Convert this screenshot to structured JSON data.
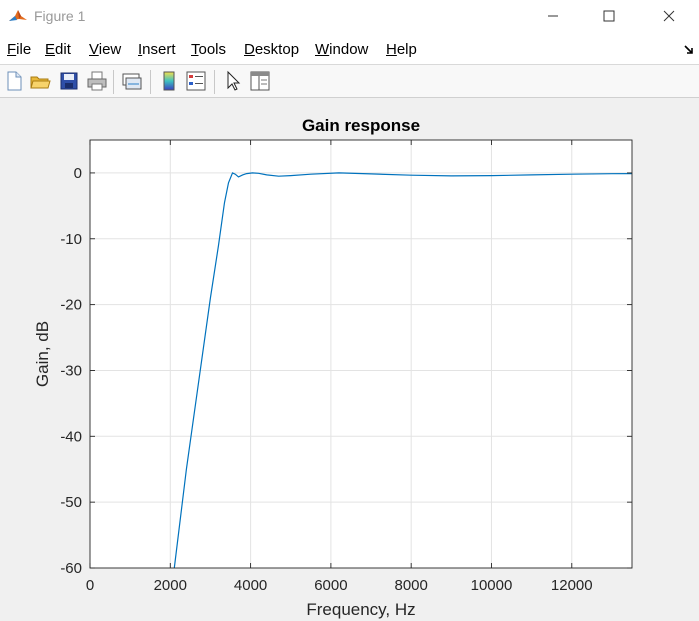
{
  "window": {
    "title": "Figure 1",
    "icon": "matlab-logo-icon",
    "controls": [
      "minimize-icon",
      "maximize-icon",
      "close-icon"
    ]
  },
  "menu": {
    "items": [
      {
        "mnemonic": "F",
        "rest": "ile"
      },
      {
        "mnemonic": "E",
        "rest": "dit"
      },
      {
        "mnemonic": "V",
        "rest": "iew"
      },
      {
        "mnemonic": "I",
        "rest": "nsert"
      },
      {
        "mnemonic": "T",
        "rest": "ools"
      },
      {
        "mnemonic": "D",
        "rest": "esktop"
      },
      {
        "mnemonic": "W",
        "rest": "indow"
      },
      {
        "mnemonic": "H",
        "rest": "elp"
      }
    ],
    "dock_icon": "dock-arrow-icon"
  },
  "toolbar": {
    "icons": [
      "new-figure-icon",
      "open-file-icon",
      "save-icon",
      "print-icon",
      "link-plot-icon",
      "colorbar-icon",
      "legend-icon",
      "edit-plot-icon",
      "property-inspector-icon"
    ]
  },
  "colors": {
    "line": "#0072bd",
    "grid": "#e3e3e3",
    "axes_bg": "#ffffff",
    "figure_bg": "#f0f0f0"
  },
  "chart_data": {
    "type": "line",
    "title": "Gain response",
    "xlabel": "Frequency, Hz",
    "ylabel": "Gain, dB",
    "xlim": [
      0,
      13500
    ],
    "ylim": [
      -60,
      5
    ],
    "xticks": [
      0,
      2000,
      4000,
      6000,
      8000,
      10000,
      12000
    ],
    "yticks": [
      0,
      -10,
      -20,
      -30,
      -40,
      -50,
      -60
    ],
    "xtick_labels": [
      "0",
      "2000",
      "4000",
      "6000",
      "8000",
      "10000",
      "12000"
    ],
    "ytick_labels": [
      "0",
      "-10",
      "-20",
      "-30",
      "-40",
      "-50",
      "-60"
    ],
    "grid": true,
    "series": [
      {
        "x": [
          2100,
          2400,
          2700,
          3000,
          3200,
          3350,
          3450,
          3550,
          3620,
          3700,
          3800,
          3900,
          4050,
          4200,
          4400,
          4700,
          5000,
          5500,
          6200,
          7000,
          8000,
          9000,
          10000,
          11000,
          12000,
          13000,
          13500
        ],
        "y": [
          -60,
          -45,
          -32,
          -19,
          -11,
          -4.5,
          -1.5,
          0,
          -0.2,
          -0.6,
          -0.3,
          -0.1,
          0,
          -0.05,
          -0.3,
          -0.5,
          -0.4,
          -0.2,
          0,
          -0.15,
          -0.35,
          -0.45,
          -0.4,
          -0.3,
          -0.2,
          -0.12,
          -0.1
        ]
      }
    ]
  }
}
